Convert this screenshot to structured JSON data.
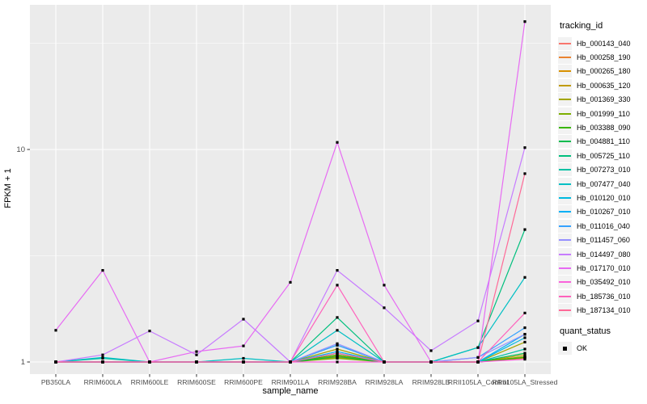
{
  "panel": {
    "bg": "#EBEBEB",
    "grid_color": "#FFFFFF",
    "tick_color": "#333333",
    "tick_label_color": "#4D4D4D"
  },
  "axes": {
    "y_title": "FPKM + 1",
    "x_title": "sample_name"
  },
  "legend": {
    "tracking_title": "tracking_id",
    "quant_title": "quant_status",
    "quant_ok_label": "OK"
  },
  "chart_data": {
    "type": "line",
    "title": "",
    "xlabel": "sample_name",
    "ylabel": "FPKM + 1",
    "y_scale": "log10",
    "y_ticks": [
      1,
      10
    ],
    "y_minor_ticks": [
      3.1623,
      31.623
    ],
    "ylim_log_expanded": [
      0.9,
      46
    ],
    "grid": true,
    "legend_position": "right",
    "point_marker": {
      "shape": "square",
      "color": "#000000",
      "legend_group": "quant_status",
      "legend_value": "OK"
    },
    "categories": [
      "PB350LA",
      "RRIM600LA",
      "RRIM600LE",
      "RRIM600SE",
      "RRIM600PE",
      "RRIM901LA",
      "RRIM928BA",
      "RRIM928LA",
      "RRIM928LB",
      "RRII105LA_Control",
      "RRII105LA_Stressed"
    ],
    "series": [
      {
        "name": "Hb_000143_040",
        "color": "#F8766D",
        "values": [
          1,
          1,
          1,
          1,
          1,
          1,
          1.1,
          1,
          1,
          1,
          1.06
        ]
      },
      {
        "name": "Hb_000258_190",
        "color": "#EA8331",
        "values": [
          1,
          1,
          1,
          1,
          1,
          1,
          1.05,
          1,
          1,
          1,
          1.04
        ]
      },
      {
        "name": "Hb_000265_180",
        "color": "#D89000",
        "values": [
          1,
          1,
          1,
          1,
          1,
          1,
          1.07,
          1,
          1,
          1,
          1.05
        ]
      },
      {
        "name": "Hb_000635_120",
        "color": "#C09B00",
        "values": [
          1,
          1,
          1,
          1,
          1,
          1,
          1.05,
          1,
          1,
          1,
          1.08
        ]
      },
      {
        "name": "Hb_001369_330",
        "color": "#A3A500",
        "values": [
          1,
          1,
          1,
          1,
          1,
          1,
          1.15,
          1,
          1,
          1,
          1.24
        ]
      },
      {
        "name": "Hb_001999_110",
        "color": "#7CAE00",
        "values": [
          1,
          1,
          1,
          1,
          1,
          1,
          1.04,
          1,
          1,
          1,
          1.06
        ]
      },
      {
        "name": "Hb_003388_090",
        "color": "#39B600",
        "values": [
          1,
          1,
          1,
          1,
          1,
          1,
          1.08,
          1,
          1,
          1,
          1.05
        ]
      },
      {
        "name": "Hb_004881_110",
        "color": "#00BB4E",
        "values": [
          1,
          1,
          1,
          1,
          1,
          1,
          1.06,
          1,
          1,
          1,
          1.1
        ]
      },
      {
        "name": "Hb_005725_110",
        "color": "#00BF7D",
        "values": [
          1,
          1,
          1,
          1,
          1,
          1,
          1.62,
          1,
          1,
          1.17,
          4.2
        ]
      },
      {
        "name": "Hb_007273_010",
        "color": "#00C1A3",
        "values": [
          1,
          1.04,
          1,
          1,
          1,
          1,
          1.2,
          1,
          1,
          1,
          1.15
        ]
      },
      {
        "name": "Hb_007477_040",
        "color": "#00BFC4",
        "values": [
          1,
          1.05,
          1,
          1,
          1.04,
          1,
          1.41,
          1,
          1,
          1.17,
          2.5
        ]
      },
      {
        "name": "Hb_010120_010",
        "color": "#00BAE0",
        "values": [
          1,
          1,
          1,
          1,
          1,
          1,
          1.1,
          1,
          1,
          1,
          1.3
        ]
      },
      {
        "name": "Hb_010267_010",
        "color": "#00B0F6",
        "values": [
          1,
          1,
          1,
          1,
          1,
          1,
          1.12,
          1,
          1,
          1,
          1.35
        ]
      },
      {
        "name": "Hb_011016_040",
        "color": "#35A2FF",
        "values": [
          1,
          1,
          1,
          1,
          1,
          1,
          1.2,
          1,
          1,
          1.05,
          1.45
        ]
      },
      {
        "name": "Hb_011457_060",
        "color": "#9590FF",
        "values": [
          1,
          1,
          1,
          1,
          1,
          1,
          1.22,
          1,
          1,
          1.05,
          1.35
        ]
      },
      {
        "name": "Hb_014497_080",
        "color": "#C77CFF",
        "values": [
          1,
          1.08,
          1.4,
          1.08,
          1.59,
          1,
          2.7,
          1.8,
          1.13,
          1.56,
          10.2
        ]
      },
      {
        "name": "Hb_017170_010",
        "color": "#E76BF3",
        "values": [
          1.41,
          2.7,
          1,
          1.12,
          1.19,
          2.37,
          10.8,
          2.3,
          1,
          1,
          40
        ]
      },
      {
        "name": "Hb_035492_010",
        "color": "#FA62DB",
        "values": [
          1,
          1,
          1,
          1,
          1,
          1,
          1,
          1,
          1,
          1,
          1.03
        ]
      },
      {
        "name": "Hb_185736_010",
        "color": "#FF62BC",
        "values": [
          1,
          1,
          1,
          1,
          1,
          1,
          2.3,
          1,
          1,
          1,
          1.7
        ]
      },
      {
        "name": "Hb_187134_010",
        "color": "#FF6A98",
        "values": [
          1,
          1,
          1,
          1,
          1,
          1,
          1.1,
          1,
          1,
          1,
          7.7
        ]
      }
    ]
  }
}
